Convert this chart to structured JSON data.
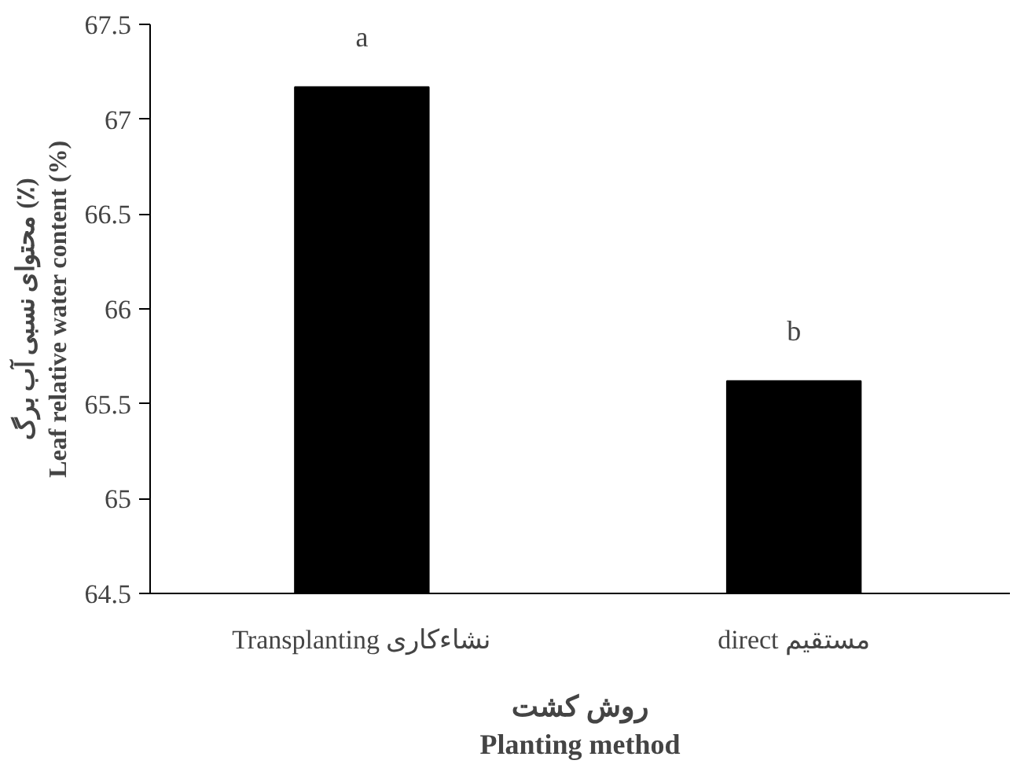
{
  "chart_data": {
    "type": "bar",
    "ylabel": "محتوای نسبی آب برگ (٪)\nLeaf relative water content (%)",
    "xlabel": "روش کشت\nPlanting method",
    "categories": [
      "Transplanting نشاءکاری",
      "direct مستقیم"
    ],
    "values": [
      67.17,
      65.62
    ],
    "color": "#000000",
    "ylim": [
      64.5,
      67.5
    ],
    "yticks": [
      64.5,
      65,
      65.5,
      66,
      66.5,
      67,
      67.5
    ],
    "grid": false,
    "annotations": [
      {
        "text": "a",
        "x": "Transplanting نشاءکاری",
        "y": 67.17
      },
      {
        "text": "b",
        "x": "direct مستقیم",
        "y": 65.62
      }
    ]
  }
}
